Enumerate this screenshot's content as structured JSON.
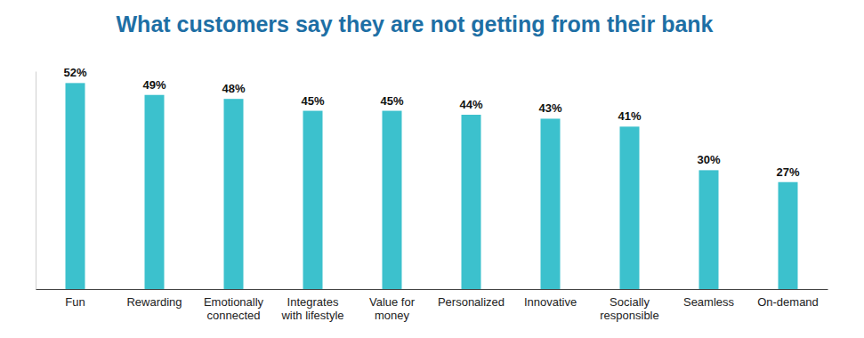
{
  "chart_data": {
    "type": "bar",
    "title": "What customers say they are not getting from their bank",
    "categories": [
      "Fun",
      "Rewarding",
      "Emotionally connected",
      "Integrates with lifestyle",
      "Value for money",
      "Personalized",
      "Innovative",
      "Socially responsible",
      "Seamless",
      "On-demand"
    ],
    "values": [
      52,
      49,
      48,
      45,
      45,
      44,
      43,
      41,
      30,
      27
    ],
    "value_labels": [
      "52%",
      "49%",
      "48%",
      "45%",
      "45%",
      "44%",
      "43%",
      "41%",
      "30%",
      "27%"
    ],
    "color": "#3cc1cd",
    "ylim": [
      0,
      55
    ],
    "data_labels": true,
    "tick_labels": "x",
    "grid": false
  }
}
